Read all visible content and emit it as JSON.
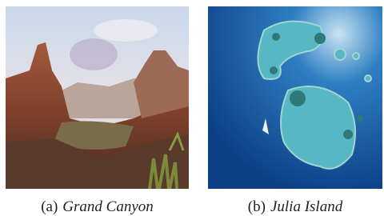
{
  "figure": {
    "subfigures": [
      {
        "label": "(a)",
        "caption": "Grand Canyon"
      },
      {
        "label": "(b)",
        "caption": "Julia Island"
      }
    ]
  }
}
